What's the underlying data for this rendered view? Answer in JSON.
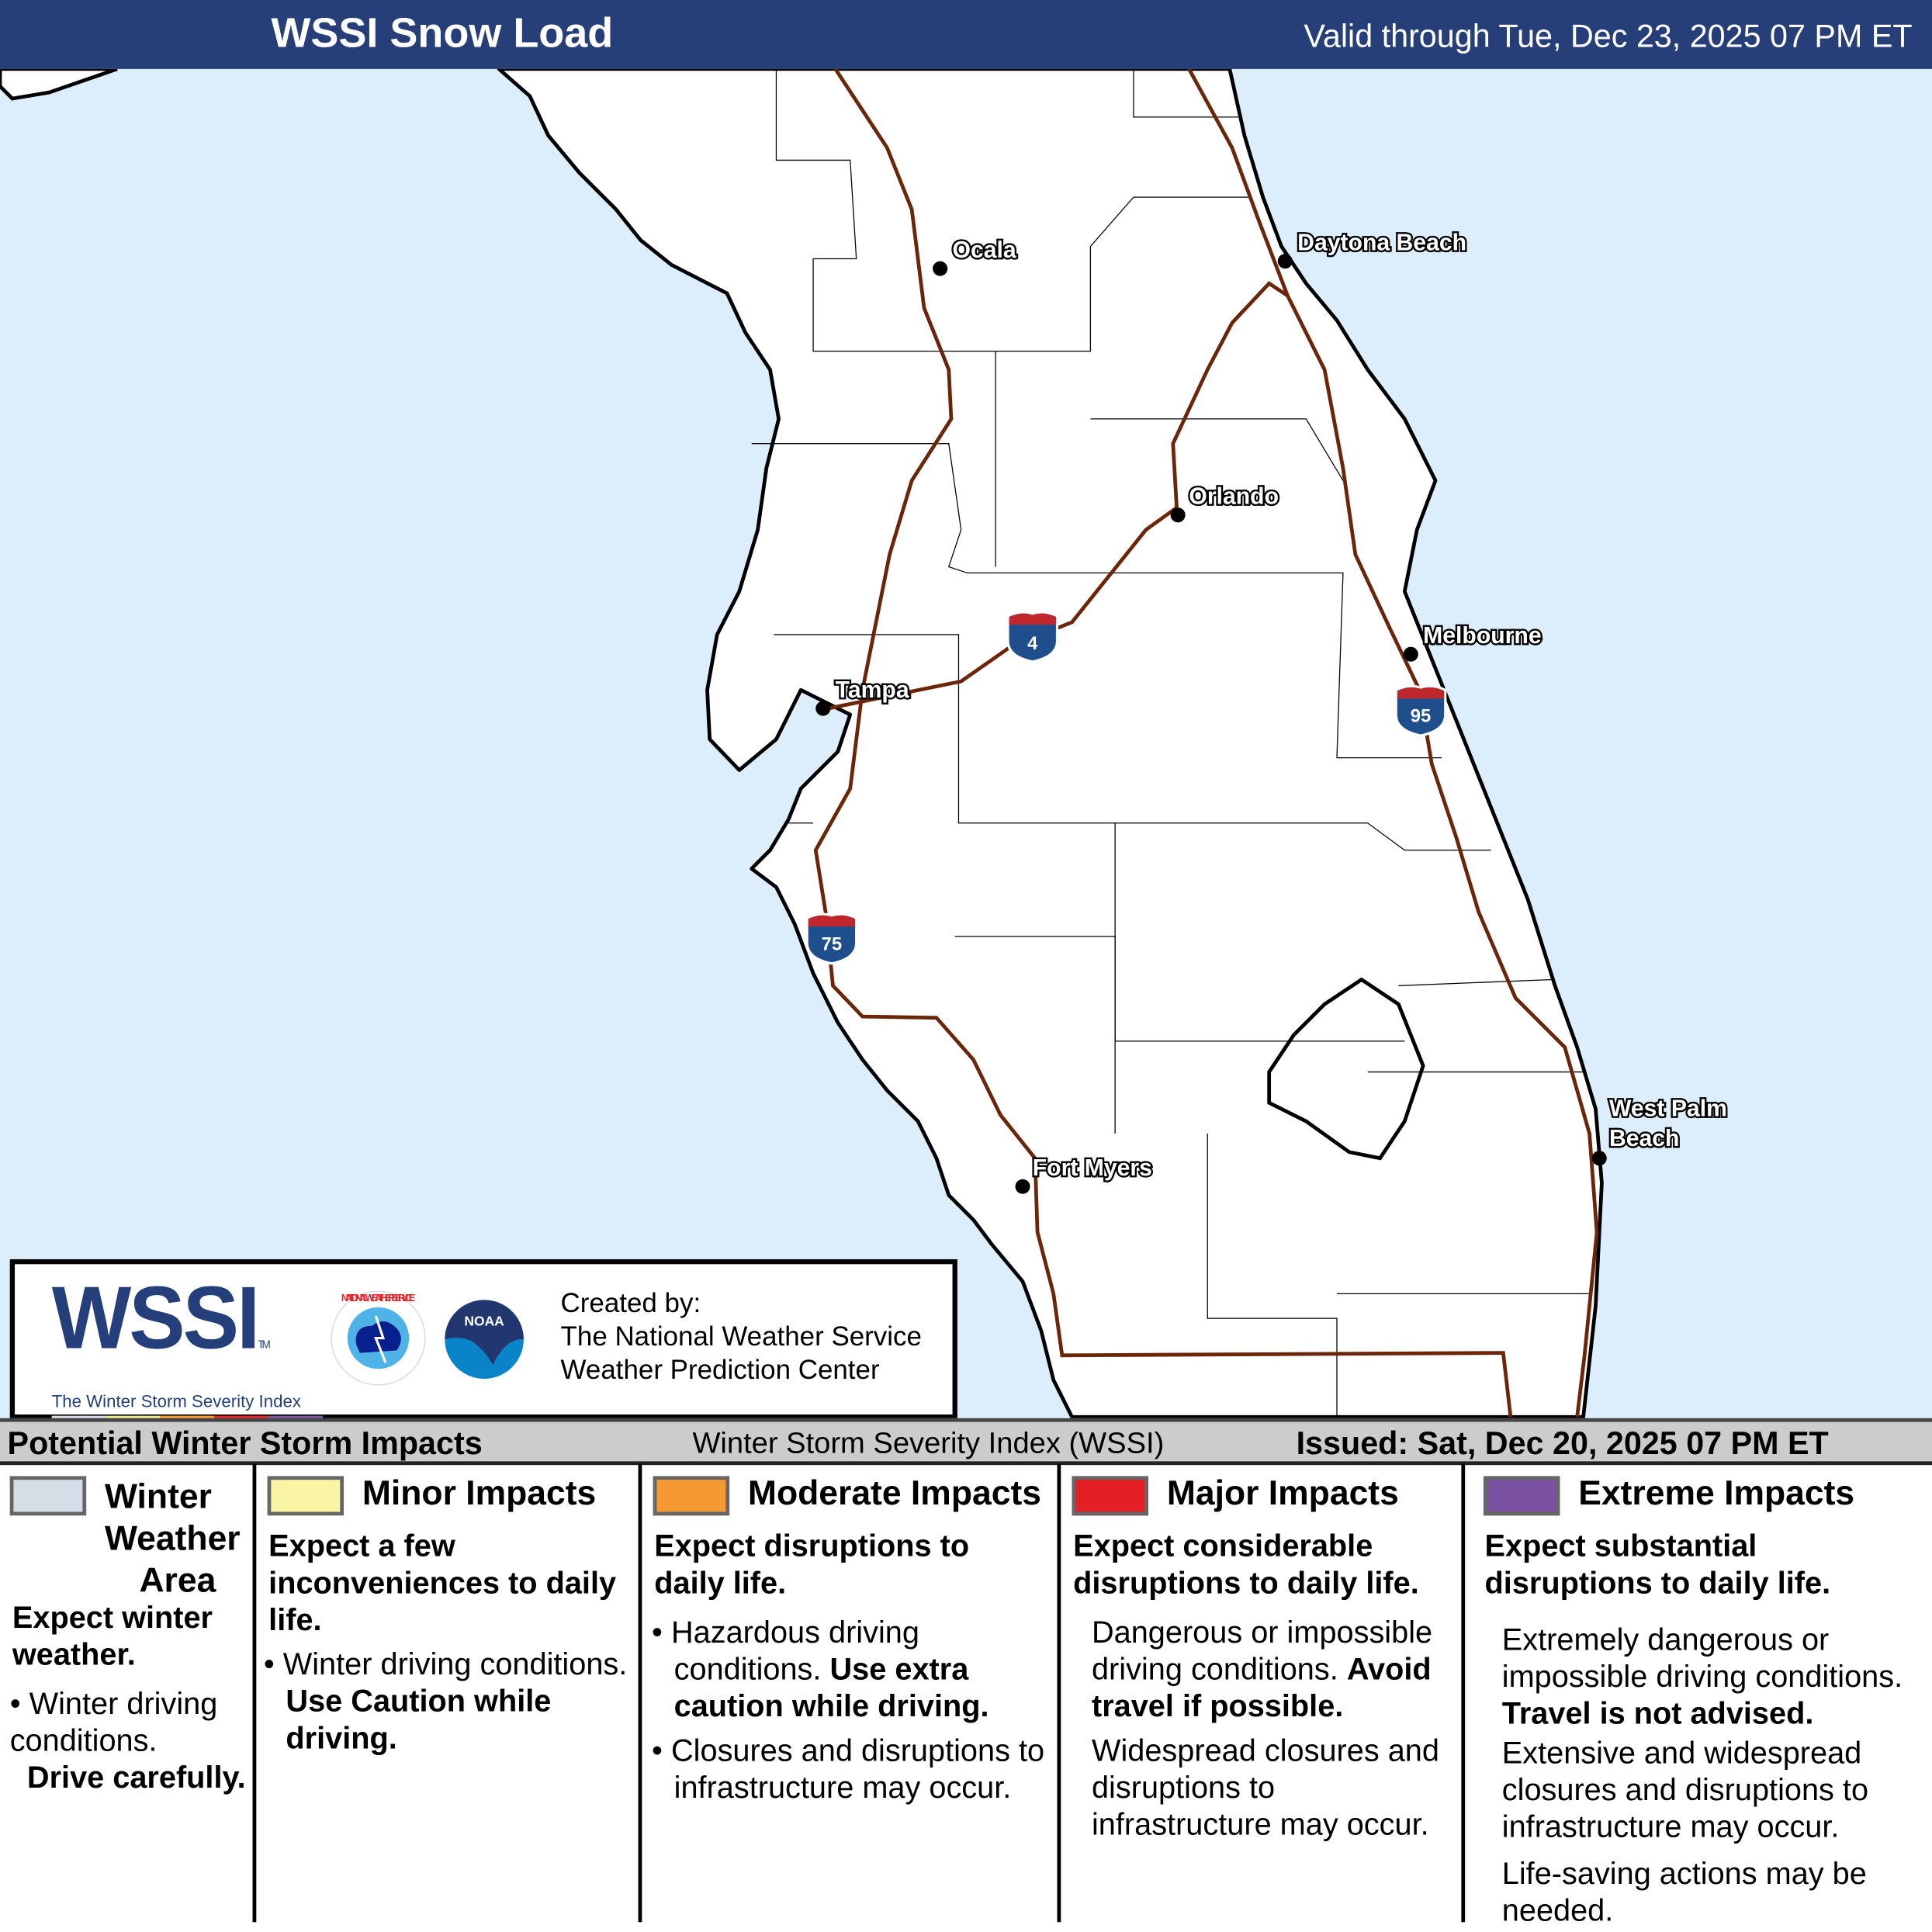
{
  "header": {
    "title": "WSSI Snow Load",
    "valid": "Valid through Tue, Dec 23, 2025 07 PM ET",
    "background": "#273f78"
  },
  "map": {
    "water_color": "#dceefb",
    "land_color": "#ffffff",
    "road_color": "#6b2508",
    "cities": [
      "Ocala",
      "Daytona Beach",
      "Orlando",
      "Melbourne",
      "Tampa",
      "West Palm",
      "Beach",
      "Fort Myers"
    ],
    "shields": [
      "4",
      "95",
      "75"
    ]
  },
  "logo": {
    "wssi": "WSSI",
    "tm": "TM",
    "subtitle": "The Winter Storm Severity Index",
    "nws_text": "NATIONAL WEATHER SERVICE",
    "noaa_text": "NOAA",
    "created_by": "Created by:",
    "org1": "The National Weather Service",
    "org2": "Weather Prediction Center",
    "colors": [
      "#d9d9e6",
      "#ebea91",
      "#f59c34",
      "#e2232a",
      "#7a52a0"
    ]
  },
  "legend_bar": {
    "left": "Potential Winter Storm Impacts",
    "center": "Winter Storm Severity Index (WSSI)",
    "right": "Issued: Sat, Dec 20, 2025 07 PM ET"
  },
  "legend": [
    {
      "name": "Winter Weather Area",
      "color": "#d3dee6",
      "l1": "Winter",
      "l2": "Weather",
      "l3": "Area",
      "summary": "Expect winter weather.",
      "bullet": "Winter driving conditions.",
      "bold": "Drive carefully."
    },
    {
      "name": "Minor Impacts",
      "color": "#f9f5a4",
      "summary": "Expect a few inconveniences to daily life.",
      "bullet": "Winter driving conditions.",
      "bold": "Use Caution while driving."
    },
    {
      "name": "Moderate Impacts",
      "color": "#f59a32",
      "summary": "Expect disruptions to daily life.",
      "bullet": "Hazardous driving conditions.",
      "bold": "Use extra caution while driving.",
      "bullet2": "Closures and disruptions to infrastructure may occur."
    },
    {
      "name": "Major Impacts",
      "color": "#e41f26",
      "summary": "Expect considerable disruptions to daily life.",
      "text": "Dangerous or impossible driving conditions.",
      "bold": "Avoid travel if possible.",
      "text2": "Widespread closures and disruptions to infrastructure may occur."
    },
    {
      "name": "Extreme Impacts",
      "color": "#7a51a1",
      "summary": "Expect substantial disruptions to daily life.",
      "text": "Extremely dangerous or impossible driving conditions.",
      "bold": "Travel is not advised.",
      "text2": "Extensive and widespread closures and disruptions to infrastructure may occur.",
      "text3": "Life-saving actions may be needed."
    }
  ]
}
